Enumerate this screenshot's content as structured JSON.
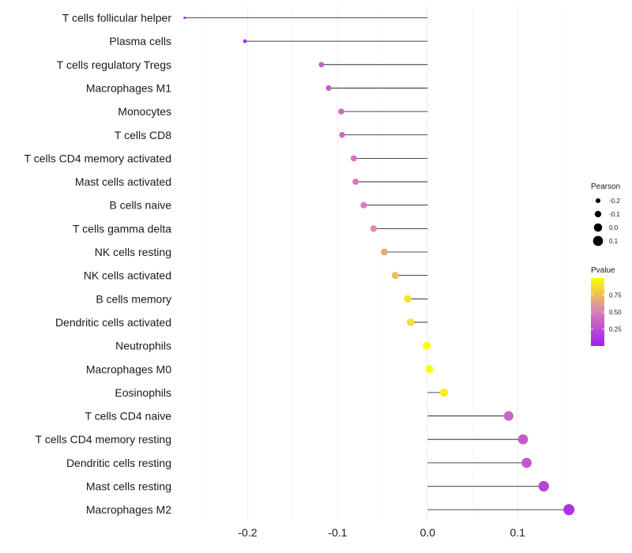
{
  "chart_data": {
    "type": "lollipop",
    "title": "",
    "xlabel": "",
    "ylabel": "",
    "xlim": [
      -0.275,
      0.163
    ],
    "xticks": [
      -0.2,
      -0.1,
      0.0,
      0.1
    ],
    "xtick_labels": [
      "-0.2",
      "-0.1",
      "0.0",
      "0.1"
    ],
    "grid": true,
    "categories": [
      "T cells follicular helper",
      "Plasma cells",
      "T cells regulatory  Tregs",
      "Macrophages M1",
      "Monocytes",
      "T cells CD8",
      "T cells CD4 memory activated",
      "Mast cells activated",
      "B cells naive",
      "T cells gamma delta",
      "NK cells resting",
      "NK cells activated",
      "B cells memory",
      "Dendritic cells activated",
      "Neutrophils",
      "Macrophages M0",
      "Eosinophils",
      "T cells CD4 naive",
      "T cells CD4 memory resting",
      "Dendritic cells resting",
      "Mast cells resting",
      "Macrophages M2"
    ],
    "pearson": [
      -0.27,
      -0.203,
      -0.118,
      -0.11,
      -0.096,
      -0.095,
      -0.082,
      -0.08,
      -0.071,
      -0.06,
      -0.048,
      -0.036,
      -0.022,
      -0.019,
      -0.001,
      0.002,
      0.018,
      0.09,
      0.106,
      0.11,
      0.129,
      0.157
    ],
    "pvalue": [
      0.0,
      0.05,
      0.35,
      0.33,
      0.4,
      0.4,
      0.45,
      0.47,
      0.5,
      0.58,
      0.68,
      0.75,
      0.88,
      0.88,
      0.995,
      0.995,
      0.93,
      0.38,
      0.33,
      0.3,
      0.2,
      0.1
    ],
    "legend": {
      "size_title": "Pearson",
      "size_labels": [
        "-0.2",
        "-0.1",
        "0.0",
        "0.1"
      ],
      "color_title": "Pvalue",
      "color_labels": [
        "0.25",
        "0.50",
        "0.75"
      ],
      "color_low": "#a020f0",
      "color_mid": "#d77db8",
      "color_high": "#ffff00",
      "placement": "right"
    }
  }
}
